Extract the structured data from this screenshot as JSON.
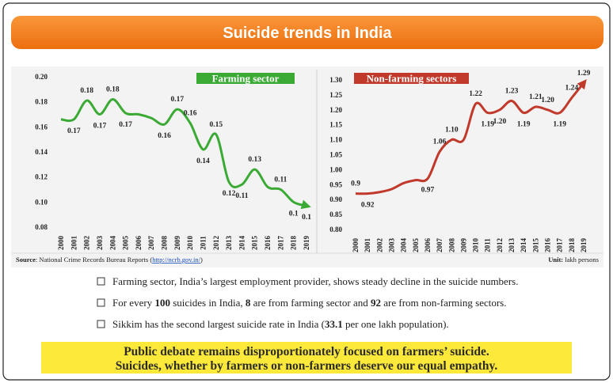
{
  "title": "Suicide trends in India",
  "chart_data": [
    {
      "type": "line",
      "categories": [
        "2000",
        "2001",
        "2002",
        "2003",
        "2004",
        "2005",
        "2006",
        "2007",
        "2008",
        "2009",
        "2010",
        "2011",
        "2012",
        "2013",
        "2014",
        "2015",
        "2016",
        "2017",
        "2018",
        "2019"
      ],
      "ylim": [
        0.08,
        0.2
      ],
      "yticks": [
        0.08,
        {
          "value": 0.1,
          "label": "0.10"
        },
        0.12,
        0.14,
        0.16,
        0.18,
        {
          "value": 0.2,
          "label": "0.20"
        }
      ],
      "series": [
        {
          "name": "Farming sector",
          "color": "#3aaa35",
          "values": [
            0.166,
            0.166,
            0.181,
            0.17,
            0.182,
            0.171,
            0.17,
            0.167,
            0.162,
            0.174,
            0.163,
            0.142,
            0.154,
            0.116,
            0.114,
            0.126,
            0.112,
            0.11,
            0.1,
            0.097
          ],
          "value_labels": [
            null,
            "0.17",
            "0.18",
            "0.17",
            "0.18",
            "0.17",
            null,
            null,
            "0.16",
            "0.17",
            "0.16",
            "0.14",
            "0.15",
            "0.12",
            "0.11",
            "0.13",
            null,
            "0.11",
            "0.1",
            "0.1"
          ]
        }
      ]
    },
    {
      "type": "line",
      "categories": [
        "2000",
        "2001",
        "2002",
        "2003",
        "2004",
        "2005",
        "2006",
        "2007",
        "2008",
        "2009",
        "2010",
        "2011",
        "2012",
        "2013",
        "2014",
        "2015",
        "2016",
        "2017",
        "2018",
        "2019"
      ],
      "ylim": [
        0.8,
        1.3
      ],
      "yticks": [
        {
          "value": 0.8,
          "label": "0.80"
        },
        0.85,
        {
          "value": 0.9,
          "label": "0.90"
        },
        0.95,
        {
          "value": 1,
          "label": "1.00"
        },
        1.05,
        {
          "value": 1.1,
          "label": "1.10"
        },
        1.15,
        {
          "value": 1.2,
          "label": "1.20"
        },
        1.25,
        {
          "value": 1.3,
          "label": "1.30"
        }
      ],
      "series": [
        {
          "name": "Non-farming sectors",
          "color": "#c0392b",
          "values": [
            0.92,
            0.92,
            0.925,
            0.935,
            0.955,
            0.965,
            0.97,
            1.06,
            1.1,
            1.1,
            1.22,
            1.19,
            1.2,
            1.23,
            1.19,
            1.21,
            1.2,
            1.19,
            1.24,
            1.29
          ],
          "value_labels": [
            "0.9",
            "0.92",
            null,
            null,
            null,
            null,
            "0.97",
            "1.06",
            "1.10",
            null,
            "1.22",
            "1.19",
            "1.20",
            "1.23",
            "1.19",
            "1.21",
            "1.20",
            "1.19",
            "1.24",
            "1.29"
          ]
        }
      ]
    }
  ],
  "source": {
    "label": "Source",
    "text": ": National Crime Records Bureau Reports (",
    "link": "http://ncrb.gov.in/",
    "end": ")"
  },
  "unit": {
    "label": "Unit:",
    "text": " lakh persons"
  },
  "bullets": [
    [
      "Farming sector, India’s largest employment provider, shows steady decline in the suicide numbers."
    ],
    [
      "For every ",
      "100",
      " suicides in India, ",
      "8",
      " are from farming sector and ",
      "92",
      " are from non-farming sectors."
    ],
    [
      "Sikkim has the second largest suicide rate in India (",
      "33.1",
      " per one lakh population)."
    ]
  ],
  "callout": [
    "Public debate remains disproportionately focused on farmers’ suicide.",
    "Suicides, whether by farmers or non-farmers deserve our equal empathy."
  ]
}
